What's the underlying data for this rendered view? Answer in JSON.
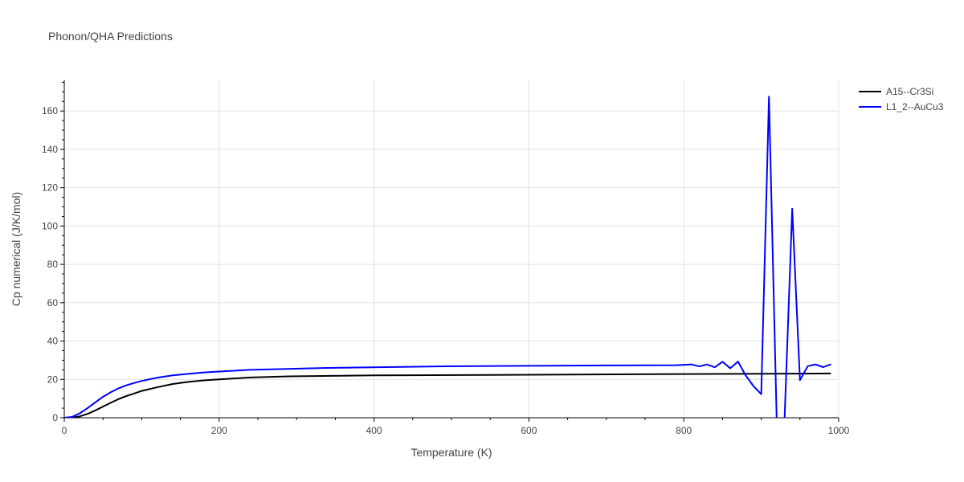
{
  "chart_data": {
    "type": "line",
    "title": "Phonon/QHA Predictions",
    "xlabel": "Temperature (K)",
    "ylabel": "Cp numerical (J/K/mol)",
    "xlim": [
      0,
      1000
    ],
    "ylim": [
      0,
      176
    ],
    "x_ticks": [
      0,
      200,
      400,
      600,
      800,
      1000
    ],
    "y_ticks": [
      0,
      20,
      40,
      60,
      80,
      100,
      120,
      140,
      160
    ],
    "grid": true,
    "legend_position": "top-right",
    "series": [
      {
        "name": "A15--Cr3Si",
        "color": "#000000",
        "x": [
          0,
          10,
          20,
          30,
          40,
          50,
          60,
          70,
          80,
          90,
          100,
          120,
          140,
          160,
          180,
          200,
          240,
          290,
          400,
          600,
          800,
          990
        ],
        "y": [
          0,
          0.1,
          0.7,
          2.0,
          3.8,
          5.8,
          7.8,
          9.7,
          11.3,
          12.6,
          14.0,
          15.9,
          17.6,
          18.7,
          19.5,
          20.0,
          21.0,
          21.6,
          22.1,
          22.4,
          22.8,
          23.1
        ]
      },
      {
        "name": "L1_2--AuCu3",
        "color": "#0000ff",
        "x": [
          0,
          10,
          20,
          30,
          40,
          50,
          60,
          70,
          80,
          90,
          100,
          120,
          140,
          160,
          180,
          200,
          240,
          340,
          490,
          600,
          700,
          790,
          810,
          820,
          830,
          840,
          850,
          860,
          870,
          880,
          890,
          900,
          910,
          920,
          930,
          940,
          950,
          960,
          970,
          980,
          990
        ],
        "y": [
          0,
          0.4,
          2.3,
          5.0,
          8.0,
          10.9,
          13.3,
          15.3,
          16.9,
          18.1,
          19.2,
          20.9,
          22.1,
          22.9,
          23.6,
          24.1,
          25.0,
          26.0,
          26.8,
          27.1,
          27.3,
          27.4,
          27.8,
          26.8,
          27.8,
          26.3,
          29.2,
          25.8,
          29.3,
          22.0,
          16.5,
          12.3,
          167.5,
          -2,
          -2,
          109.0,
          19.6,
          26.9,
          27.8,
          26.4,
          27.9
        ]
      }
    ]
  }
}
